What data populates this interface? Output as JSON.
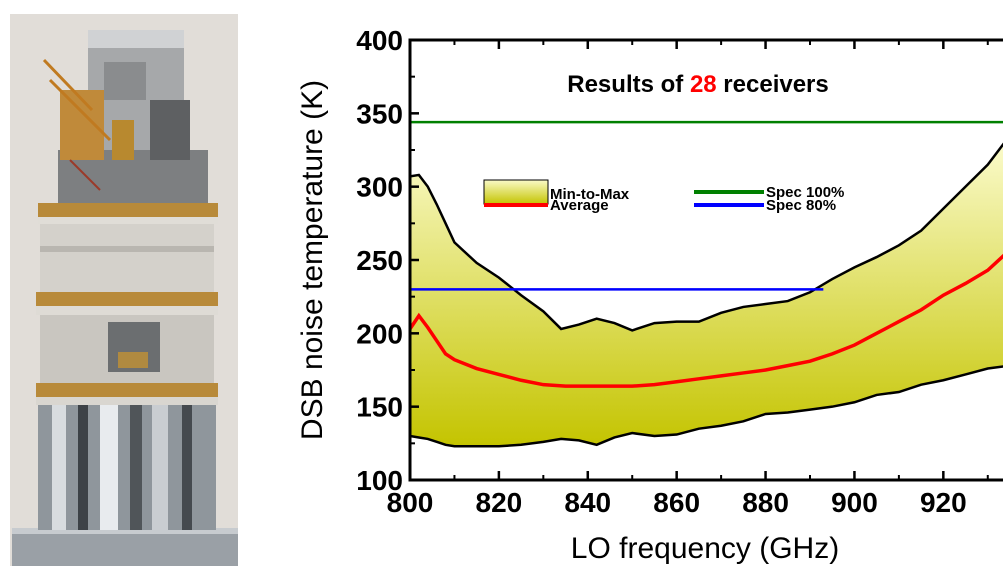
{
  "chart_data": {
    "type": "area",
    "annotation": {
      "prefix": "Results of ",
      "count": "28",
      "suffix": " receivers",
      "count_color": "#ff0000"
    },
    "xlabel": "LO frequency (GHz)",
    "ylabel": "DSB noise temperature (K)",
    "xlim": [
      800,
      935
    ],
    "ylim": [
      100,
      400
    ],
    "x_ticks": [
      800,
      820,
      840,
      860,
      880,
      900,
      920
    ],
    "y_ticks": [
      100,
      150,
      200,
      250,
      300,
      350,
      400
    ],
    "grid": false,
    "legend_position": "upper-center",
    "legend": [
      {
        "key": "minmax",
        "label": "Min-to-Max",
        "color": "#e8e830"
      },
      {
        "key": "spec100",
        "label": "Spec 100%",
        "color": "#008000"
      },
      {
        "key": "average",
        "label": "Average",
        "color": "#ff0000"
      },
      {
        "key": "spec80",
        "label": "Spec 80%",
        "color": "#0000ff"
      }
    ],
    "series": [
      {
        "name": "Min-to-Max",
        "type": "band",
        "color": "#e8e830",
        "x": [
          800,
          802,
          804,
          806,
          808,
          810,
          815,
          820,
          825,
          830,
          834,
          838,
          842,
          846,
          850,
          855,
          860,
          865,
          870,
          875,
          880,
          885,
          890,
          895,
          900,
          905,
          910,
          915,
          920,
          925,
          930,
          935
        ],
        "upper": [
          307,
          308,
          300,
          288,
          275,
          262,
          248,
          238,
          226,
          215,
          203,
          206,
          210,
          207,
          202,
          207,
          208,
          208,
          214,
          218,
          220,
          222,
          228,
          237,
          245,
          252,
          260,
          270,
          285,
          300,
          315,
          335
        ],
        "lower": [
          130,
          129,
          128,
          126,
          124,
          123,
          123,
          123,
          124,
          126,
          128,
          127,
          124,
          129,
          132,
          130,
          131,
          135,
          137,
          140,
          145,
          146,
          148,
          150,
          153,
          158,
          160,
          165,
          168,
          172,
          176,
          178
        ]
      },
      {
        "name": "Average",
        "type": "line",
        "color": "#ff0000",
        "x": [
          800,
          802,
          804,
          806,
          808,
          810,
          815,
          820,
          825,
          830,
          835,
          840,
          845,
          850,
          855,
          860,
          865,
          870,
          875,
          880,
          885,
          890,
          895,
          900,
          905,
          910,
          915,
          920,
          925,
          930,
          935
        ],
        "y": [
          203,
          212,
          204,
          195,
          186,
          182,
          176,
          172,
          168,
          165,
          164,
          164,
          164,
          164,
          165,
          167,
          169,
          171,
          173,
          175,
          178,
          181,
          186,
          192,
          200,
          208,
          216,
          226,
          234,
          243,
          257
        ]
      },
      {
        "name": "Spec 100%",
        "type": "hline",
        "color": "#008000",
        "y": 344,
        "x_range": [
          800,
          935
        ]
      },
      {
        "name": "Spec 80%",
        "type": "hline",
        "color": "#0000ff",
        "y": 230,
        "x_range": [
          800,
          893
        ]
      }
    ]
  }
}
